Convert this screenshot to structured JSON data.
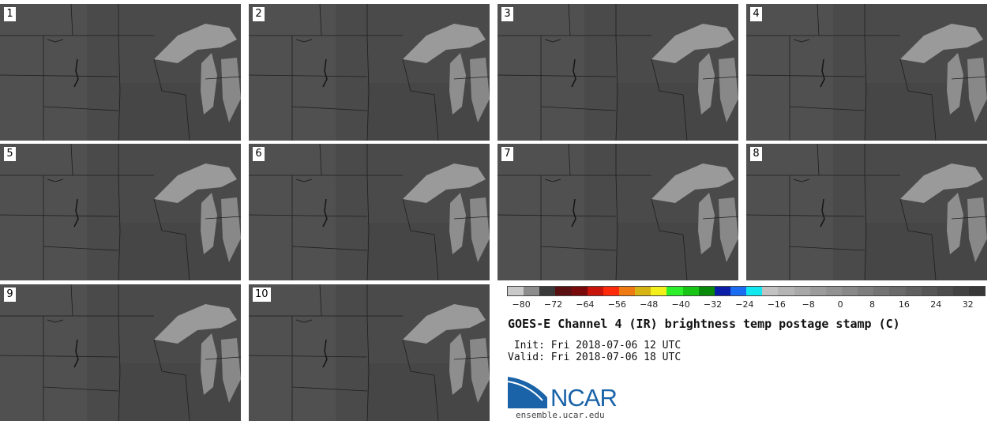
{
  "figure": {
    "title": "GOES-E Channel 4 (IR) brightness temp postage stamp (C)",
    "init_label": " Init: Fri 2018-07-06 12 UTC",
    "valid_label": "Valid: Fri 2018-07-06 18 UTC",
    "logo_text": "NCAR",
    "website": "ensemble.ucar.edu"
  },
  "panels": [
    {
      "label": "1"
    },
    {
      "label": "2"
    },
    {
      "label": "3"
    },
    {
      "label": "4"
    },
    {
      "label": "5"
    },
    {
      "label": "6"
    },
    {
      "label": "7"
    },
    {
      "label": "8"
    },
    {
      "label": "9"
    },
    {
      "label": "10"
    }
  ],
  "colorbar": {
    "tick_labels": [
      "−80",
      "−72",
      "−64",
      "−56",
      "−48",
      "−40",
      "−32",
      "−24",
      "−16",
      "−8",
      "0",
      "8",
      "16",
      "24",
      "32"
    ],
    "colors": [
      "#c9c9c9",
      "#8c8c8c",
      "#3a3a3a",
      "#5a1010",
      "#7a0a0a",
      "#c8140a",
      "#ff2a0a",
      "#f07a12",
      "#d6b414",
      "#f2ef1a",
      "#2ef02a",
      "#18c414",
      "#0a8a0a",
      "#0a1ea8",
      "#1a6cf0",
      "#12e8f0",
      "#c2c2c2",
      "#b4b4b4",
      "#a8a8a8",
      "#9c9c9c",
      "#929292",
      "#888888",
      "#7e7e7e",
      "#747474",
      "#6a6a6a",
      "#606060",
      "#565656",
      "#4c4c4c",
      "#424242",
      "#383838"
    ]
  }
}
